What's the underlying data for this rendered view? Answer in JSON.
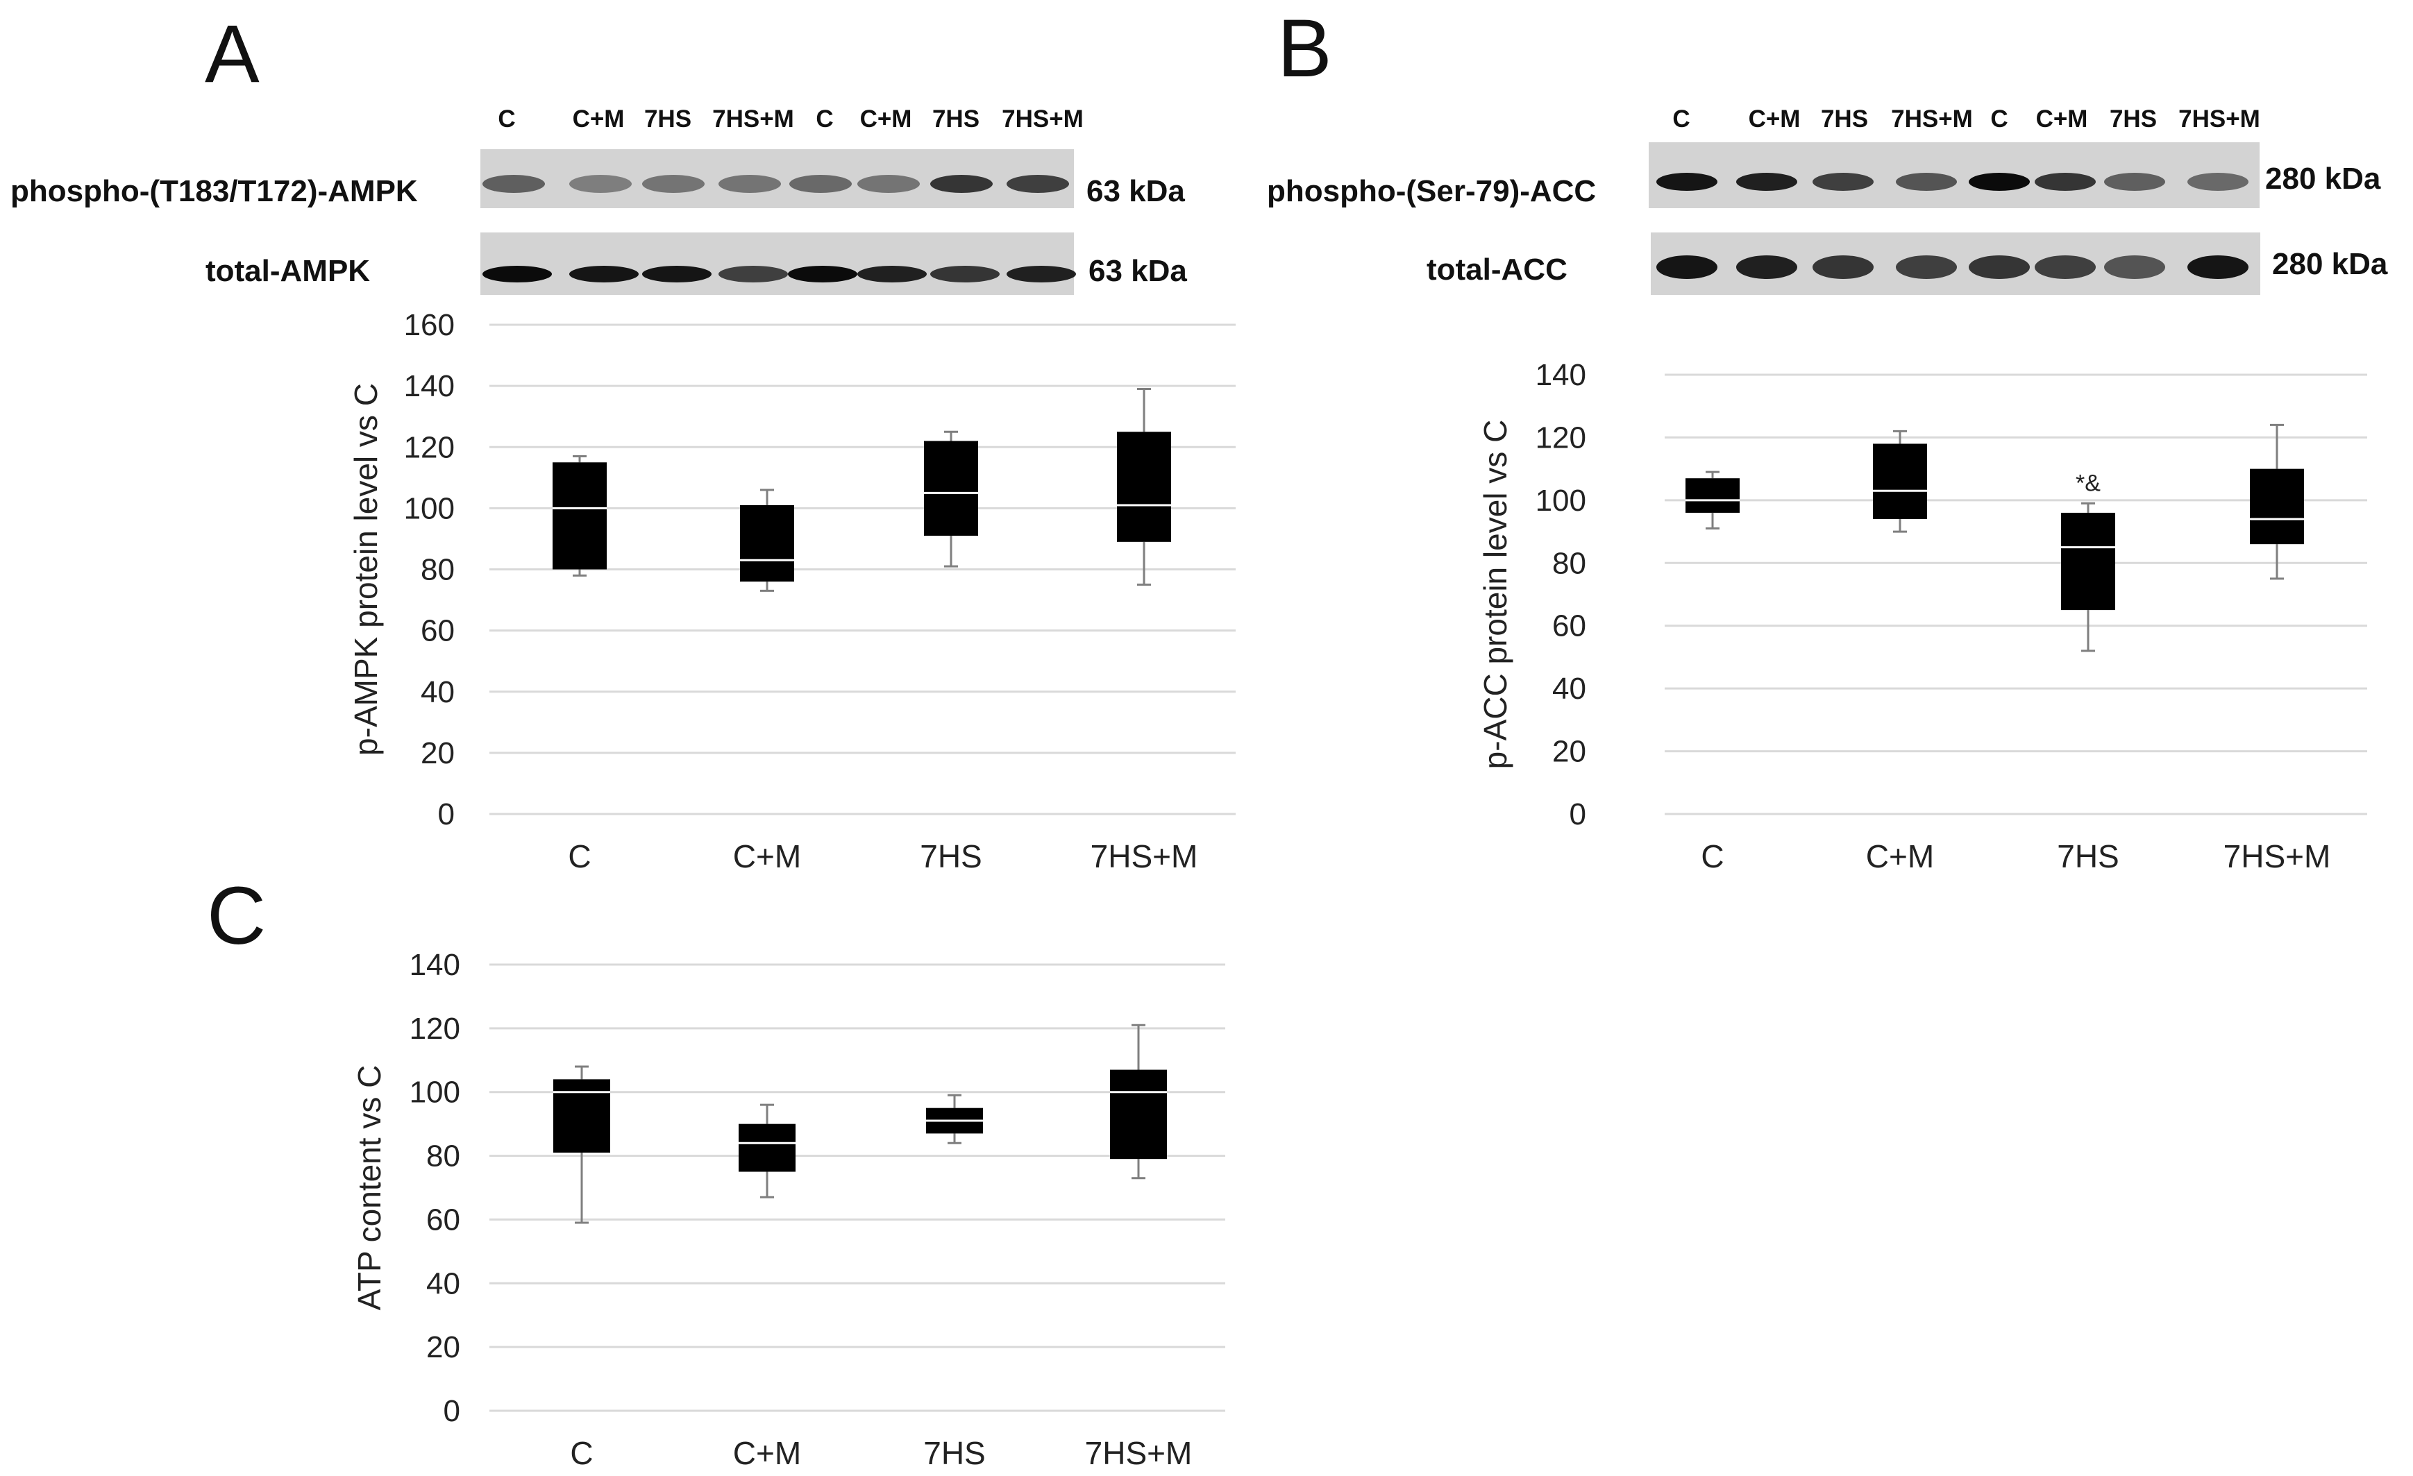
{
  "panels": {
    "A": {
      "letter": "A",
      "lane_labels": [
        "C",
        "C+M",
        "7HS",
        "7HS+M",
        "C",
        "C+M",
        "7HS",
        "7HS+M"
      ],
      "blots": [
        {
          "label": "phospho-(T183/T172)-AMPK",
          "kda": "63 kDa"
        },
        {
          "label": "total-AMPK",
          "kda": "63 kDa"
        }
      ]
    },
    "B": {
      "letter": "B",
      "lane_labels": [
        "C",
        "C+M",
        "7HS",
        "7HS+M",
        "C",
        "C+M",
        "7HS",
        "7HS+M"
      ],
      "blots": [
        {
          "label": "phospho-(Ser-79)-ACC",
          "kda": "280 kDa"
        },
        {
          "label": "total-ACC",
          "kda": "280 kDa"
        }
      ]
    },
    "C": {
      "letter": "C"
    }
  },
  "chart_data": [
    {
      "id": "A",
      "type": "boxplot",
      "title": "",
      "xlabel": "",
      "ylabel": "p-AMPK protein level vs  C",
      "ylim": [
        0,
        160
      ],
      "yticks": [
        "0",
        "20",
        "40",
        "60",
        "80",
        "100",
        "120",
        "140",
        "160"
      ],
      "categories": [
        "C",
        "C+M",
        "7HS",
        "7HS+M"
      ],
      "boxes": [
        {
          "min": 78,
          "q1": 80,
          "median": 100,
          "q3": 115,
          "max": 117
        },
        {
          "min": 73,
          "q1": 76,
          "median": 83,
          "q3": 101,
          "max": 106
        },
        {
          "min": 81,
          "q1": 91,
          "median": 105,
          "q3": 122,
          "max": 125
        },
        {
          "min": 75,
          "q1": 89,
          "median": 101,
          "q3": 125,
          "max": 139
        }
      ],
      "annotations": []
    },
    {
      "id": "B",
      "type": "boxplot",
      "title": "",
      "xlabel": "",
      "ylabel": "p-ACC protein level vs  C",
      "ylim": [
        0,
        140
      ],
      "yticks": [
        "0",
        "20",
        "40",
        "60",
        "80",
        "100",
        "120",
        "140"
      ],
      "categories": [
        "C",
        "C+M",
        "7HS",
        "7HS+M"
      ],
      "boxes": [
        {
          "min": 91,
          "q1": 96,
          "median": 100,
          "q3": 107,
          "max": 109
        },
        {
          "min": 90,
          "q1": 94,
          "median": 103,
          "q3": 118,
          "max": 122
        },
        {
          "min": 52,
          "q1": 65,
          "median": 85,
          "q3": 96,
          "max": 99
        },
        {
          "min": 75,
          "q1": 86,
          "median": 94,
          "q3": 110,
          "max": 124
        }
      ],
      "annotations": [
        {
          "category": "7HS",
          "text": "*&",
          "y": 103
        }
      ]
    },
    {
      "id": "C",
      "type": "boxplot",
      "title": "",
      "xlabel": "",
      "ylabel": "ATP content vs  C",
      "ylim": [
        0,
        140
      ],
      "yticks": [
        "0",
        "20",
        "40",
        "60",
        "80",
        "100",
        "120",
        "140"
      ],
      "categories": [
        "C",
        "C+M",
        "7HS",
        "7HS+M"
      ],
      "boxes": [
        {
          "min": 59,
          "q1": 81,
          "median": 100,
          "q3": 104,
          "max": 108
        },
        {
          "min": 67,
          "q1": 75,
          "median": 84,
          "q3": 90,
          "max": 96
        },
        {
          "min": 84,
          "q1": 87,
          "median": 91,
          "q3": 95,
          "max": 99
        },
        {
          "min": 73,
          "q1": 79,
          "median": 100,
          "q3": 107,
          "max": 121
        }
      ],
      "annotations": []
    }
  ]
}
